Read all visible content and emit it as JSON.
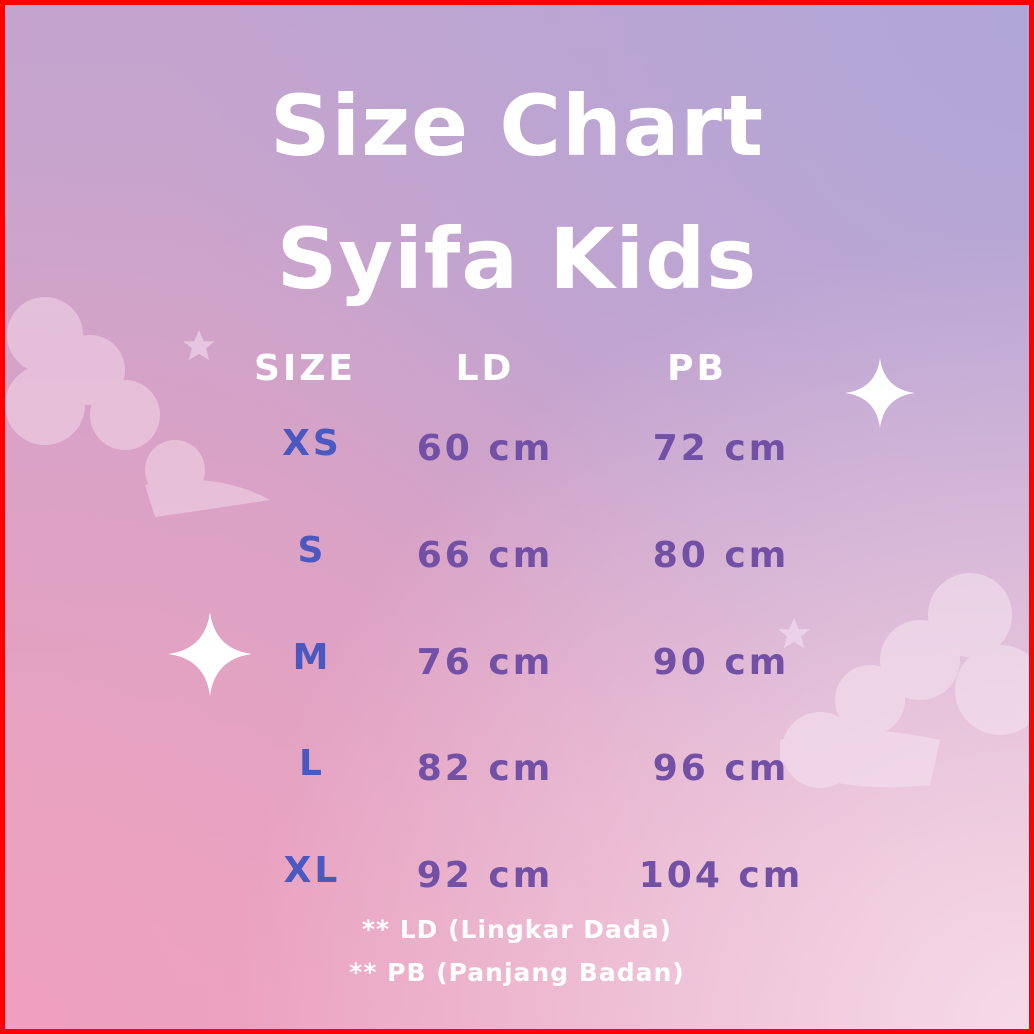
{
  "title_line1": "Size Chart",
  "title_line2": "Syifa Kids",
  "headers": [
    "SIZE",
    "LD",
    "PB"
  ],
  "rows": [
    {
      "size": "XS",
      "ld": "60 cm",
      "pb": "72 cm"
    },
    {
      "size": "S",
      "ld": "66 cm",
      "pb": "80 cm"
    },
    {
      "size": "M",
      "ld": "76 cm",
      "pb": "90 cm"
    },
    {
      "size": "L",
      "ld": "82 cm",
      "pb": "96 cm"
    },
    {
      "size": "XL",
      "ld": "92 cm",
      "pb": "104 cm"
    }
  ],
  "notes": [
    "** LD (Lingkar Dada)",
    "** PB (Panjang Badan)"
  ],
  "colors": {
    "size_text": "#4a58c0",
    "value_text": "#7150a6",
    "border": "#ff0000"
  }
}
